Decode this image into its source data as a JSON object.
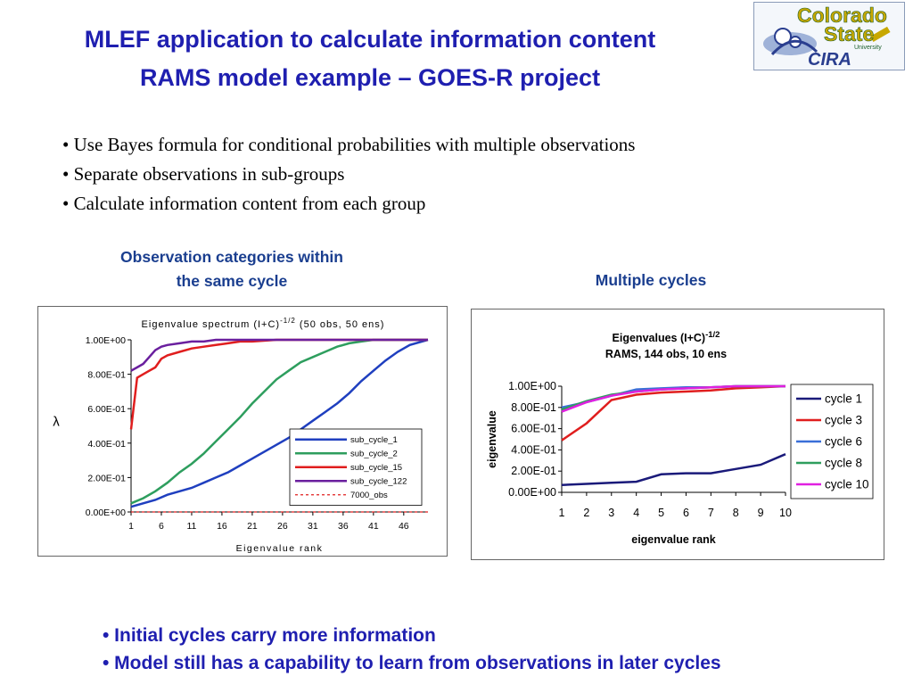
{
  "header": {
    "title": "MLEF application to calculate information content",
    "subtitle": "RAMS model example – GOES-R project"
  },
  "logo": {
    "line1": "Colorado",
    "line2": "State",
    "line3": "University",
    "line4": "CIRA",
    "icon": "colorado-state-cira-logo"
  },
  "bullets": [
    "• Use Bayes formula for conditional probabilities with multiple observations",
    "• Separate observations in sub-groups",
    "• Calculate information content from each group"
  ],
  "captions": {
    "left_line1": "Observation categories within",
    "left_line2": "the same cycle",
    "right": "Multiple cycles"
  },
  "bottom_bullets": [
    "• Initial cycles carry more information",
    "• Model still has a capability to learn from observations in later cycles"
  ],
  "chart_data": [
    {
      "type": "line",
      "title": "Eigenvalue spectrum (I+C)",
      "title_sup": "-1/2",
      "title_suffix": "(50 obs, 50 ens)",
      "xlabel": "Eigenvalue rank",
      "ylabel": "λ",
      "ylim": [
        0,
        1
      ],
      "xlim": [
        1,
        50
      ],
      "yticks": [
        "0.00E+00",
        "2.00E-01",
        "4.00E-01",
        "6.00E-01",
        "8.00E-01",
        "1.00E+00"
      ],
      "xticks": [
        "1",
        "6",
        "11",
        "16",
        "21",
        "26",
        "31",
        "36",
        "41",
        "46"
      ],
      "legend_position": "bottom-right",
      "grid": false,
      "series": [
        {
          "name": "sub_cycle_1",
          "color": "#1f3fbf",
          "dash": false,
          "x": [
            1,
            3,
            5,
            7,
            9,
            11,
            13,
            15,
            17,
            19,
            21,
            23,
            25,
            27,
            29,
            31,
            33,
            35,
            37,
            39,
            41,
            43,
            45,
            47,
            49,
            50
          ],
          "y": [
            0.03,
            0.05,
            0.07,
            0.1,
            0.12,
            0.14,
            0.17,
            0.2,
            0.23,
            0.27,
            0.31,
            0.35,
            0.39,
            0.43,
            0.48,
            0.53,
            0.58,
            0.63,
            0.69,
            0.76,
            0.82,
            0.88,
            0.93,
            0.97,
            0.99,
            1.0
          ]
        },
        {
          "name": "sub_cycle_2",
          "color": "#2e9e5e",
          "dash": false,
          "x": [
            1,
            3,
            5,
            7,
            9,
            11,
            13,
            15,
            17,
            19,
            21,
            23,
            25,
            27,
            29,
            31,
            33,
            35,
            37,
            39,
            41,
            43,
            45,
            47,
            49,
            50
          ],
          "y": [
            0.05,
            0.08,
            0.12,
            0.17,
            0.23,
            0.28,
            0.34,
            0.41,
            0.48,
            0.55,
            0.63,
            0.7,
            0.77,
            0.82,
            0.87,
            0.9,
            0.93,
            0.96,
            0.98,
            0.99,
            1.0,
            1.0,
            1.0,
            1.0,
            1.0,
            1.0
          ]
        },
        {
          "name": "sub_cycle_15",
          "color": "#e01e1e",
          "dash": false,
          "x": [
            1,
            2,
            3,
            4,
            5,
            6,
            7,
            9,
            11,
            13,
            15,
            17,
            19,
            21,
            25,
            30,
            35,
            40,
            45,
            50
          ],
          "y": [
            0.48,
            0.78,
            0.8,
            0.82,
            0.84,
            0.89,
            0.91,
            0.93,
            0.95,
            0.96,
            0.97,
            0.98,
            0.99,
            0.99,
            1.0,
            1.0,
            1.0,
            1.0,
            1.0,
            1.0
          ]
        },
        {
          "name": "sub_cycle_122",
          "color": "#6a1f9e",
          "dash": false,
          "x": [
            1,
            2,
            3,
            4,
            5,
            6,
            7,
            9,
            11,
            13,
            15,
            17,
            20,
            25,
            30,
            35,
            40,
            45,
            50
          ],
          "y": [
            0.82,
            0.84,
            0.86,
            0.9,
            0.94,
            0.96,
            0.97,
            0.98,
            0.99,
            0.99,
            1.0,
            1.0,
            1.0,
            1.0,
            1.0,
            1.0,
            1.0,
            1.0,
            1.0
          ]
        },
        {
          "name": "7000_obs",
          "color": "#e01e1e",
          "dash": true,
          "x": [
            1,
            50
          ],
          "y": [
            0.0,
            0.0
          ]
        }
      ]
    },
    {
      "type": "line",
      "title": "Eigenvalues (I+C)",
      "title_sup": "-1/2",
      "title_line2": "RAMS, 144 obs, 10 ens",
      "xlabel": "eigenvalue rank",
      "ylabel": "eigenvalue",
      "ylim": [
        0,
        1
      ],
      "xlim": [
        1,
        10
      ],
      "yticks": [
        "0.00E+00",
        "2.00E-01",
        "4.00E-01",
        "6.00E-01",
        "8.00E-01",
        "1.00E+00"
      ],
      "xticks": [
        "1",
        "2",
        "3",
        "4",
        "5",
        "6",
        "7",
        "8",
        "9",
        "10"
      ],
      "legend_position": "right",
      "grid": false,
      "series": [
        {
          "name": "cycle 1",
          "color": "#1a1a7a",
          "dash": false,
          "x": [
            1,
            2,
            3,
            4,
            5,
            6,
            7,
            8,
            9,
            10
          ],
          "y": [
            0.07,
            0.08,
            0.09,
            0.1,
            0.17,
            0.18,
            0.18,
            0.22,
            0.26,
            0.36
          ]
        },
        {
          "name": "cycle 3",
          "color": "#e01e1e",
          "dash": false,
          "x": [
            1,
            2,
            3,
            4,
            5,
            6,
            7,
            8,
            9,
            10
          ],
          "y": [
            0.49,
            0.65,
            0.87,
            0.92,
            0.94,
            0.95,
            0.96,
            0.98,
            0.99,
            1.0
          ]
        },
        {
          "name": "cycle 6",
          "color": "#3a6fd8",
          "dash": false,
          "x": [
            1,
            2,
            3,
            4,
            5,
            6,
            7,
            8,
            9,
            10
          ],
          "y": [
            0.8,
            0.85,
            0.91,
            0.97,
            0.98,
            0.99,
            0.99,
            1.0,
            1.0,
            1.0
          ]
        },
        {
          "name": "cycle 8",
          "color": "#2e9e5e",
          "dash": false,
          "x": [
            1,
            2,
            3,
            4,
            5,
            6,
            7,
            8,
            9,
            10
          ],
          "y": [
            0.78,
            0.86,
            0.92,
            0.95,
            0.97,
            0.98,
            0.99,
            1.0,
            1.0,
            1.0
          ]
        },
        {
          "name": "cycle 10",
          "color": "#e020e0",
          "dash": false,
          "x": [
            1,
            2,
            3,
            4,
            5,
            6,
            7,
            8,
            9,
            10
          ],
          "y": [
            0.76,
            0.85,
            0.91,
            0.95,
            0.97,
            0.98,
            0.99,
            1.0,
            1.0,
            1.0
          ]
        }
      ]
    }
  ]
}
